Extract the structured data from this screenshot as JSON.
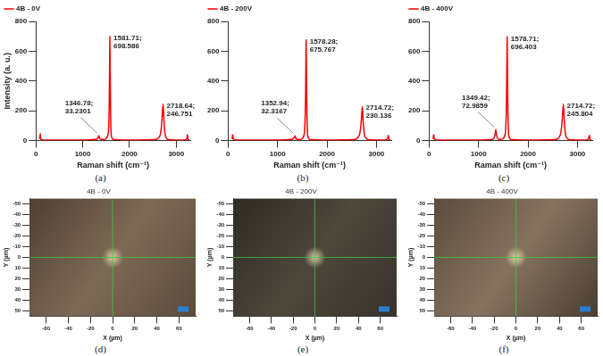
{
  "chart_data": [
    {
      "type": "line",
      "panel": "(a)",
      "x_label": "Raman shift (cm⁻¹)",
      "y_label": "Intensity (a. u.)",
      "xlim": [
        0,
        3300
      ],
      "xticks": [
        0,
        1000,
        2000,
        3000
      ],
      "ylim": [
        0,
        800
      ],
      "yticks": [
        0,
        200,
        400,
        600,
        800
      ],
      "grid": false,
      "legend": "upper left",
      "x": [
        80,
        95,
        110,
        200,
        400,
        600,
        800,
        1000,
        1200,
        1300,
        1330,
        1346.78,
        1365,
        1400,
        1500,
        1550,
        1570,
        1581.71,
        1595,
        1610,
        1640,
        1700,
        1900,
        2200,
        2400,
        2500,
        2600,
        2660,
        2690,
        2718.64,
        2740,
        2770,
        2820,
        2900,
        3000,
        3150,
        3220,
        3240,
        3255,
        3280
      ],
      "series": [
        {
          "name": "4B - 0V",
          "color": "#ff0000",
          "values": [
            10,
            45,
            8,
            4,
            3,
            3,
            3,
            4,
            6,
            10,
            20,
            33.2301,
            15,
            8,
            12,
            60,
            300,
            698.586,
            250,
            40,
            10,
            6,
            4,
            4,
            5,
            6,
            12,
            40,
            120,
            246.751,
            120,
            30,
            8,
            5,
            4,
            4,
            10,
            40,
            8,
            4
          ]
        }
      ],
      "annotations": [
        {
          "text": [
            "1346.78;",
            "33.2301"
          ],
          "x": 1346.78,
          "y": 33.2301
        },
        {
          "text": [
            "1581.71;",
            "698.586"
          ],
          "x": 1581.71,
          "y": 698.586
        },
        {
          "text": [
            "2718.64;",
            "246.751"
          ],
          "x": 2718.64,
          "y": 246.751
        }
      ]
    },
    {
      "type": "line",
      "panel": "(b)",
      "x_label": "Raman shift (cm⁻¹)",
      "xlim": [
        0,
        3300
      ],
      "xticks": [
        0,
        1000,
        2000,
        3000
      ],
      "ylim": [
        0,
        800
      ],
      "yticks": [
        0,
        200,
        400,
        600,
        800
      ],
      "grid": false,
      "legend": "upper left",
      "x": [
        80,
        95,
        110,
        200,
        400,
        600,
        800,
        1000,
        1200,
        1300,
        1335,
        1352.94,
        1370,
        1400,
        1500,
        1545,
        1566,
        1578.28,
        1592,
        1608,
        1640,
        1700,
        1900,
        2200,
        2400,
        2500,
        2600,
        2655,
        2688,
        2714.72,
        2736,
        2766,
        2820,
        2900,
        3000,
        3150,
        3220,
        3240,
        3255,
        3280
      ],
      "series": [
        {
          "name": "4B - 200V",
          "color": "#ff0000",
          "values": [
            10,
            40,
            8,
            4,
            3,
            3,
            3,
            4,
            6,
            10,
            20,
            32.3167,
            15,
            8,
            12,
            60,
            290,
            675.767,
            240,
            40,
            10,
            6,
            4,
            4,
            5,
            6,
            12,
            38,
            110,
            230.136,
            110,
            28,
            8,
            5,
            4,
            4,
            10,
            35,
            8,
            4
          ]
        }
      ],
      "annotations": [
        {
          "text": [
            "1352.94;",
            "32.3167"
          ],
          "x": 1352.94,
          "y": 32.3167
        },
        {
          "text": [
            "1578.28;",
            "675.767"
          ],
          "x": 1578.28,
          "y": 675.767
        },
        {
          "text": [
            "2714.72;",
            "230.136"
          ],
          "x": 2714.72,
          "y": 230.136
        }
      ]
    },
    {
      "type": "line",
      "panel": "(c)",
      "x_label": "Raman shift (cm⁻¹)",
      "xlim": [
        0,
        3300
      ],
      "xticks": [
        0,
        1000,
        2000,
        3000
      ],
      "ylim": [
        0,
        800
      ],
      "yticks": [
        0,
        200,
        400,
        600,
        800
      ],
      "grid": false,
      "legend": "upper left",
      "x": [
        80,
        95,
        110,
        200,
        400,
        600,
        800,
        1000,
        1200,
        1300,
        1330,
        1349.42,
        1368,
        1400,
        1500,
        1545,
        1566,
        1578.71,
        1592,
        1608,
        1640,
        1700,
        1900,
        2200,
        2400,
        2500,
        2600,
        2655,
        2688,
        2714.72,
        2736,
        2766,
        2820,
        2900,
        3000,
        3150,
        3220,
        3240,
        3255,
        3280
      ],
      "series": [
        {
          "name": "4B - 400V",
          "color": "#ff0000",
          "values": [
            10,
            40,
            8,
            4,
            3,
            3,
            3,
            4,
            6,
            12,
            35,
            72.9859,
            30,
            10,
            14,
            60,
            300,
            696.403,
            250,
            40,
            10,
            6,
            4,
            4,
            5,
            6,
            12,
            40,
            120,
            245.804,
            120,
            30,
            8,
            5,
            4,
            4,
            10,
            35,
            8,
            4
          ]
        }
      ],
      "annotations": [
        {
          "text": [
            "1349.42;",
            "72.9859"
          ],
          "x": 1349.42,
          "y": 72.9859
        },
        {
          "text": [
            "1578.71;",
            "696.403"
          ],
          "x": 1578.71,
          "y": 696.403
        },
        {
          "text": [
            "2714.72;",
            "245.804"
          ],
          "x": 2714.72,
          "y": 245.804
        }
      ]
    },
    {
      "type": "image",
      "panel": "(d)",
      "title": "4B - 0V",
      "x_label": "X (µm)",
      "y_label": "Y (µm)",
      "grid": false,
      "xlim": [
        -75,
        75
      ],
      "xticks": [
        -60,
        -40,
        -20,
        0,
        20,
        40,
        60
      ],
      "ylim": [
        55,
        -55
      ],
      "yticks": [
        -50,
        -40,
        -30,
        -20,
        -10,
        0,
        10,
        20,
        30,
        40,
        50
      ]
    },
    {
      "type": "image",
      "panel": "(e)",
      "title": "4B - 200V",
      "x_label": "X (µm)",
      "y_label": "Y (µm)",
      "grid": false,
      "xlim": [
        -75,
        75
      ],
      "xticks": [
        -60,
        -40,
        -20,
        0,
        20,
        40,
        60
      ],
      "ylim": [
        55,
        -55
      ],
      "yticks": [
        -50,
        -40,
        -30,
        -20,
        -10,
        0,
        10,
        20,
        30,
        40,
        50
      ]
    },
    {
      "type": "image",
      "panel": "(f)",
      "title": "4B - 400V",
      "x_label": "X (µm)",
      "y_label": "Y (µm)",
      "grid": false,
      "xlim": [
        -75,
        75
      ],
      "xticks": [
        -60,
        -40,
        -20,
        0,
        20,
        40,
        60
      ],
      "ylim": [
        55,
        -55
      ],
      "yticks": [
        -50,
        -40,
        -30,
        -20,
        -10,
        0,
        10,
        20,
        30,
        40,
        50
      ]
    }
  ]
}
